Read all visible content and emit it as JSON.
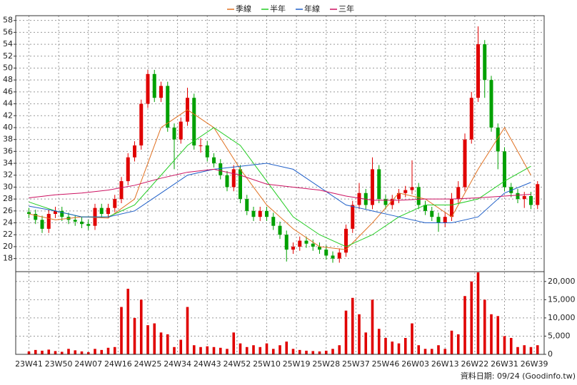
{
  "chart_data": [
    {
      "type": "candlestick",
      "up_color": "#e00000",
      "down_color": "#00a000",
      "x": [
        0,
        2,
        4,
        6,
        8,
        10,
        12,
        14,
        16,
        18,
        20,
        22,
        24,
        26,
        28,
        30,
        32,
        34,
        36,
        38,
        40,
        42,
        44,
        46,
        48,
        50,
        52,
        54,
        56,
        58,
        60,
        62,
        64,
        66,
        68,
        70,
        72,
        74,
        76,
        78,
        80,
        82,
        84,
        86,
        88,
        90,
        92,
        94,
        96,
        98,
        100,
        102,
        104,
        106,
        108,
        110,
        112,
        114,
        116,
        118,
        120,
        122,
        124,
        126,
        128,
        130,
        132,
        134,
        136,
        138,
        140,
        142,
        144,
        146,
        148,
        150,
        152,
        154
      ],
      "open": [
        25.8,
        25.5,
        24.5,
        23,
        25.5,
        26,
        25,
        24.5,
        24.2,
        23.8,
        23.5,
        26.5,
        25.5,
        26.5,
        28,
        31,
        35,
        37,
        44,
        49,
        45,
        47,
        40,
        38,
        41,
        45,
        37,
        37,
        35,
        34,
        32,
        30,
        33,
        28,
        26,
        25,
        26,
        25,
        23.5,
        22,
        19.5,
        20,
        21,
        20.5,
        20,
        19.5,
        18.5,
        18,
        19,
        23,
        27,
        29,
        27,
        33,
        28,
        27,
        28,
        29,
        29.5,
        30,
        27,
        26,
        25,
        24,
        25,
        28,
        30,
        38,
        45,
        54,
        48,
        40,
        36,
        30,
        29,
        28,
        28.5,
        27
      ],
      "high": [
        26.5,
        26.2,
        25.2,
        26.2,
        26.7,
        26.7,
        25.7,
        25.2,
        24.9,
        24.5,
        27.2,
        27.2,
        27.2,
        28.7,
        31.7,
        35.7,
        37.7,
        44.7,
        49.7,
        49.7,
        47.7,
        47.7,
        40.7,
        41.7,
        46.7,
        45.7,
        38.2,
        37.7,
        35.7,
        34.7,
        32.7,
        33.7,
        33.7,
        28.7,
        26.7,
        26.7,
        26.7,
        25.7,
        24.2,
        22.7,
        20.7,
        21.7,
        21.7,
        21.2,
        20.7,
        20.2,
        19.2,
        19.7,
        23.7,
        27.7,
        30.7,
        29.7,
        35,
        33.7,
        28.7,
        28.7,
        29.7,
        30.2,
        34.5,
        30.7,
        27.7,
        26.7,
        25.7,
        25.7,
        29,
        31,
        39,
        46,
        57,
        54.7,
        48.7,
        40.7,
        36.7,
        30.7,
        29.7,
        29.2,
        29.2,
        31
      ],
      "low": [
        24.8,
        23.8,
        22.3,
        22.3,
        24.8,
        24.3,
        23.8,
        23.5,
        23.1,
        22.8,
        22.8,
        24.8,
        24.8,
        25.8,
        27.3,
        30.3,
        34.3,
        36.3,
        43.3,
        44.3,
        44.3,
        39.3,
        33,
        37.3,
        40.3,
        36.3,
        35.8,
        34.3,
        33.3,
        31.3,
        29.3,
        29.3,
        27.3,
        25.3,
        24.3,
        24.3,
        24.3,
        22.8,
        21.3,
        17.5,
        18.8,
        19.3,
        19.8,
        19.3,
        18.8,
        17.8,
        17.3,
        17.3,
        18.3,
        22.3,
        26.3,
        26.3,
        26.3,
        27.3,
        26.3,
        26.3,
        27.3,
        28.3,
        28.8,
        26.3,
        25.3,
        24.3,
        22.5,
        23.3,
        24.3,
        27.3,
        29.3,
        37.3,
        44.3,
        45,
        39.3,
        33,
        29.3,
        28.3,
        27.3,
        26.5,
        26.3,
        26.3
      ],
      "close": [
        25.5,
        24.5,
        23,
        25.5,
        26,
        25,
        24.5,
        24.2,
        23.8,
        23.5,
        26.5,
        25.5,
        26.5,
        28,
        31,
        35,
        37,
        44,
        49,
        45,
        47,
        40,
        38,
        41,
        45,
        37,
        37,
        35,
        34,
        32,
        30,
        33,
        28,
        26,
        25,
        26,
        25,
        23.5,
        22,
        19.5,
        20,
        21,
        20.5,
        20,
        19.5,
        18.5,
        18,
        19,
        23,
        27,
        29,
        27,
        33,
        28,
        27,
        28,
        29,
        29.5,
        30,
        27,
        26,
        25,
        24,
        25,
        28,
        30,
        38,
        45,
        54,
        48,
        40,
        36,
        30,
        29,
        28,
        28.5,
        27,
        30.5
      ],
      "series": [
        {
          "name": "季線",
          "color": "#e07020",
          "x": [
            0,
            8,
            16,
            24,
            32,
            40,
            48,
            56,
            64,
            72,
            80,
            88,
            96,
            104,
            112,
            120,
            128,
            136,
            144,
            152
          ],
          "values": [
            25.5,
            24.5,
            25,
            24.8,
            28,
            40,
            43,
            40,
            33,
            27,
            23,
            20,
            19.5,
            24,
            29,
            28,
            25,
            33,
            40,
            32
          ]
        },
        {
          "name": "半年",
          "color": "#22cc22",
          "x": [
            0,
            8,
            16,
            24,
            32,
            40,
            48,
            56,
            64,
            72,
            80,
            88,
            96,
            104,
            112,
            120,
            128,
            136,
            144,
            152
          ],
          "values": [
            27.5,
            26,
            25,
            25,
            27,
            32,
            37,
            40,
            37,
            31,
            25,
            22,
            20,
            22,
            25,
            27,
            27,
            28,
            31,
            33.5
          ]
        },
        {
          "name": "年線",
          "color": "#1f5fc8",
          "x": [
            0,
            8,
            16,
            24,
            32,
            40,
            48,
            56,
            64,
            72,
            80,
            88,
            96,
            104,
            112,
            120,
            128,
            136,
            144,
            152
          ],
          "values": [
            26.8,
            26,
            25,
            25,
            26,
            29,
            32,
            33,
            33.5,
            34,
            33,
            30,
            27,
            26,
            25,
            24,
            24,
            25,
            29,
            30.8
          ]
        },
        {
          "name": "三年",
          "color": "#cc1060",
          "x": [
            0,
            8,
            16,
            24,
            32,
            40,
            48,
            56,
            64,
            72,
            80,
            88,
            96,
            104,
            112,
            120,
            128,
            136,
            144,
            152
          ],
          "values": [
            28.2,
            28.7,
            29,
            29.5,
            30.3,
            31.5,
            32.5,
            33,
            32,
            30.5,
            30,
            29.5,
            28.5,
            27.8,
            27.8,
            28,
            28,
            28.2,
            28.5,
            28.8
          ]
        }
      ],
      "xlim": [
        -4,
        156
      ],
      "xticks": [
        {
          "value": 0,
          "label": "23W41"
        },
        {
          "value": 9,
          "label": "23W50"
        },
        {
          "value": 18,
          "label": "24W07"
        },
        {
          "value": 27,
          "label": "24W16"
        },
        {
          "value": 36,
          "label": "24W25"
        },
        {
          "value": 45,
          "label": "24W34"
        },
        {
          "value": 54,
          "label": "24W43"
        },
        {
          "value": 63,
          "label": "24W52"
        },
        {
          "value": 72,
          "label": "25W10"
        },
        {
          "value": 81,
          "label": "25W19"
        },
        {
          "value": 90,
          "label": "25W28"
        },
        {
          "value": 99,
          "label": "25W37"
        },
        {
          "value": 108,
          "label": "25W46"
        },
        {
          "value": 117,
          "label": "26W03"
        },
        {
          "value": 126,
          "label": "26W13"
        },
        {
          "value": 135,
          "label": "26W22"
        },
        {
          "value": 144,
          "label": "26W31"
        },
        {
          "value": 153,
          "label": "26W39"
        }
      ],
      "ylim": [
        15.8,
        58.8
      ],
      "yticks": [
        18,
        20,
        22,
        24,
        26,
        28,
        30,
        32,
        34,
        36,
        38,
        40,
        42,
        44,
        46,
        48,
        50,
        52,
        54,
        56,
        58
      ],
      "grid": true
    },
    {
      "type": "bar",
      "color": "#e00000",
      "x": [
        0,
        2,
        4,
        6,
        8,
        10,
        12,
        14,
        16,
        18,
        20,
        22,
        24,
        26,
        28,
        30,
        32,
        34,
        36,
        38,
        40,
        42,
        44,
        46,
        48,
        50,
        52,
        54,
        56,
        58,
        60,
        62,
        64,
        66,
        68,
        70,
        72,
        74,
        76,
        78,
        80,
        82,
        84,
        86,
        88,
        90,
        92,
        94,
        96,
        98,
        100,
        102,
        104,
        106,
        108,
        110,
        112,
        114,
        116,
        118,
        120,
        122,
        124,
        126,
        128,
        130,
        132,
        134,
        136,
        138,
        140,
        142,
        144,
        146,
        148,
        150,
        152,
        154
      ],
      "values": [
        800,
        1200,
        1000,
        1300,
        900,
        700,
        1500,
        1100,
        800,
        600,
        1500,
        1200,
        1800,
        2000,
        13000,
        18000,
        10000,
        15000,
        8000,
        8500,
        6000,
        5500,
        2000,
        4000,
        13000,
        2500,
        2000,
        2200,
        2000,
        1800,
        1500,
        6000,
        3000,
        2000,
        2500,
        2000,
        3000,
        1500,
        2500,
        3500,
        1500,
        1200,
        1000,
        900,
        800,
        1000,
        1500,
        2500,
        12000,
        15500,
        11000,
        6000,
        15000,
        7000,
        4500,
        3500,
        3000,
        4500,
        8500,
        2500,
        1500,
        1500,
        2500,
        1500,
        6500,
        5500,
        16000,
        20000,
        22500,
        15000,
        11000,
        10500,
        5000,
        4500,
        2000,
        2500,
        2000,
        2500
      ],
      "ylim": [
        0,
        22700
      ],
      "yticks": [
        0,
        {
          "value": 5000,
          "label": "5,000"
        },
        {
          "value": 10000,
          "label": "10,000"
        },
        {
          "value": 15000,
          "label": "15,000"
        },
        {
          "value": 20000,
          "label": "20,000"
        }
      ],
      "grid": true
    }
  ],
  "footer": "資料日期: 09/24 (Goodinfo.tw)"
}
